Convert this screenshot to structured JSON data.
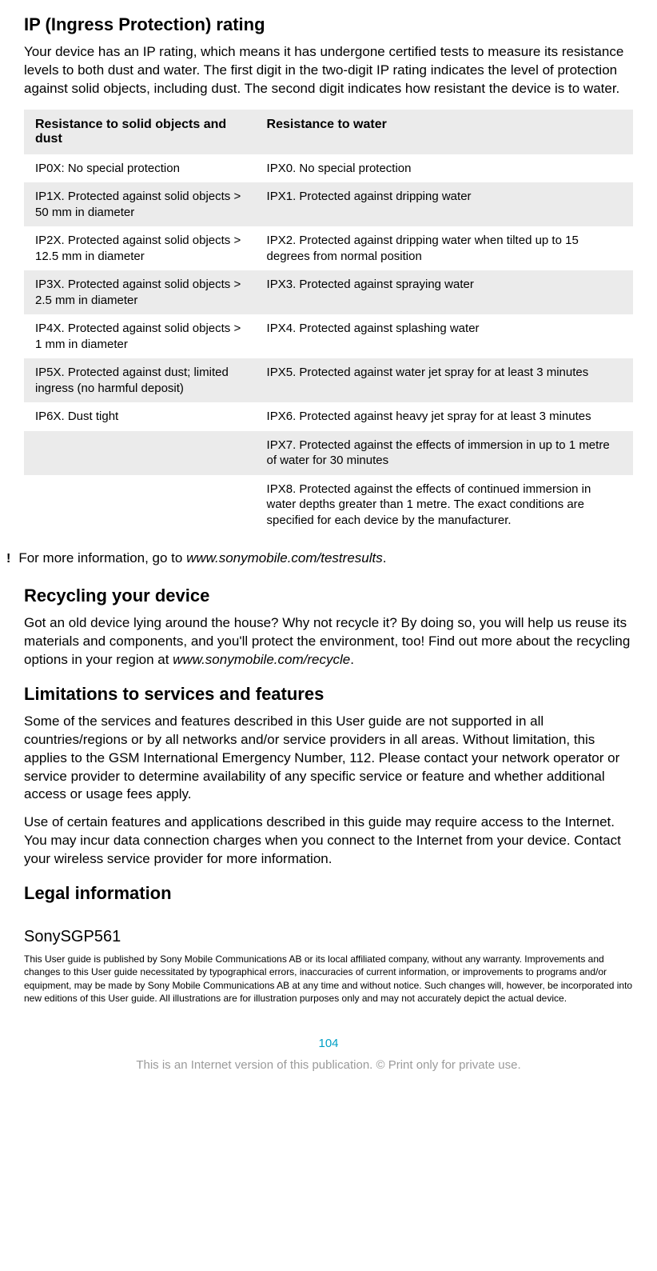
{
  "ip_section": {
    "heading": "IP (Ingress Protection) rating",
    "paragraph": "Your device has an IP rating, which means it has undergone certified tests to measure its resistance levels to both dust and water. The first digit in the two-digit IP rating indicates the level of protection against solid objects, including dust. The second digit indicates how resistant the device is to water.",
    "table": {
      "type": "table",
      "background_even": "#ebebeb",
      "background_odd": "#ffffff",
      "columns": [
        "Resistance to solid objects and dust",
        "Resistance to water"
      ],
      "rows": [
        [
          "IP0X: No special protection",
          "IPX0. No special protection"
        ],
        [
          "IP1X. Protected against solid objects > 50 mm in diameter",
          "IPX1. Protected against dripping water"
        ],
        [
          "IP2X. Protected against solid objects > 12.5 mm in diameter",
          "IPX2. Protected against dripping water when tilted up to 15 degrees from normal position"
        ],
        [
          "IP3X. Protected against solid objects > 2.5 mm in diameter",
          "IPX3. Protected against spraying water"
        ],
        [
          "IP4X. Protected against solid objects > 1 mm in diameter",
          "IPX4. Protected against splashing water"
        ],
        [
          "IP5X. Protected against dust; limited ingress (no harmful deposit)",
          "IPX5. Protected against water jet spray for at least 3 minutes"
        ],
        [
          "IP6X. Dust tight",
          "IPX6. Protected against heavy jet spray for at least 3 minutes"
        ],
        [
          "",
          "IPX7. Protected against the effects of immersion in up to 1 metre of water for 30 minutes"
        ],
        [
          "",
          "IPX8. Protected against the effects of continued immersion in water depths greater than 1 metre. The exact conditions are specified for each device by the manufacturer."
        ]
      ]
    },
    "note_icon": "!",
    "note_text_prefix": "For more information, go to ",
    "note_link": "www.sonymobile.com/testresults",
    "note_text_suffix": "."
  },
  "recycling_section": {
    "heading": "Recycling your device",
    "paragraph_prefix": "Got an old device lying around the house? Why not recycle it? By doing so, you will help us reuse its materials and components, and you'll protect the environment, too! Find out more about the recycling options in your region at ",
    "link": "www.sonymobile.com/recycle",
    "paragraph_suffix": "."
  },
  "limitations_section": {
    "heading": "Limitations to services and features",
    "paragraph1": "Some of the services and features described in this User guide are not supported in all countries/regions or by all networks and/or service providers in all areas. Without limitation, this applies to the GSM International Emergency Number, 112. Please contact your network operator or service provider to determine availability of any specific service or feature and whether additional access or usage fees apply.",
    "paragraph2": "Use of certain features and applications described in this guide may require access to the Internet. You may incur data connection charges when you connect to the Internet from your device. Contact your wireless service provider for more information."
  },
  "legal_section": {
    "heading": "Legal information",
    "model": "SonySGP561",
    "small_print": "This User guide is published by Sony Mobile Communications AB or its local affiliated company, without any warranty. Improvements and changes to this User guide necessitated by typographical errors, inaccuracies of current information, or improvements to programs and/or equipment, may be made by Sony Mobile Communications AB at any time and without notice. Such changes will, however, be incorporated into new editions of this User guide. All illustrations are for illustration purposes only and may not accurately depict the actual device."
  },
  "footer": {
    "page_number": "104",
    "line": "This is an Internet version of this publication. © Print only for private use.",
    "page_number_color": "#00a0c6",
    "line_color": "#9a9a9a"
  }
}
